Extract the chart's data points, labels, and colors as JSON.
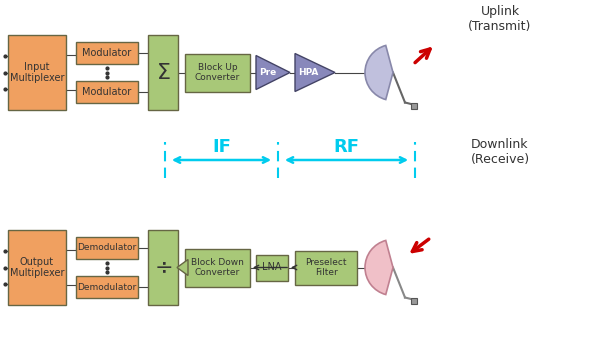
{
  "bg_color": "#ffffff",
  "orange_face": "#F0A060",
  "green_face": "#A8C878",
  "purple_face": "#8888BB",
  "pink_face": "#F0B8C0",
  "cyan_color": "#00CCEE",
  "red_color": "#CC0000",
  "text_dark": "#333333",
  "uplink_text": "Uplink\n(Transmit)",
  "downlink_text": "Downlink\n(Receive)",
  "if_text": "IF",
  "rf_text": "RF"
}
